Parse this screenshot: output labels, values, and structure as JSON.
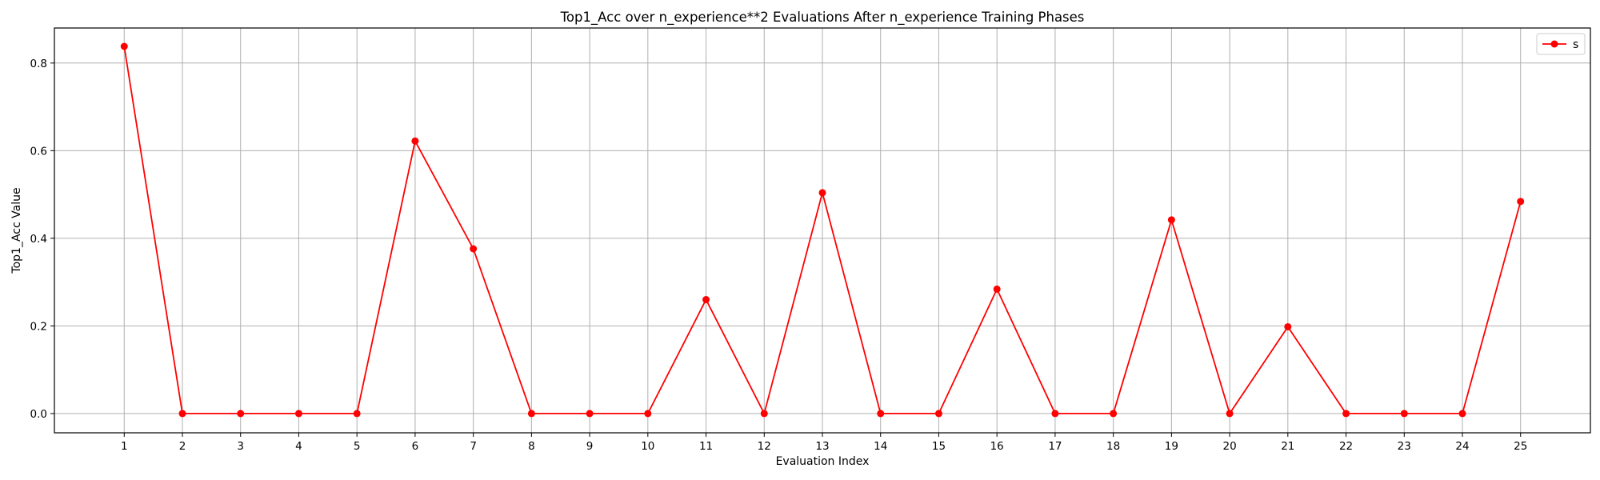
{
  "chart_data": {
    "type": "line",
    "title": "Top1_Acc over n_experience**2 Evaluations After n_experience Training Phases",
    "xlabel": "Evaluation Index",
    "ylabel": "Top1_Acc Value",
    "x": [
      1,
      2,
      3,
      4,
      5,
      6,
      7,
      8,
      9,
      10,
      11,
      12,
      13,
      14,
      15,
      16,
      17,
      18,
      19,
      20,
      21,
      22,
      23,
      24,
      25
    ],
    "xlim": [
      -0.2,
      26.2
    ],
    "ylim": [
      -0.044,
      0.88
    ],
    "xticks": [
      "1",
      "2",
      "3",
      "4",
      "5",
      "6",
      "7",
      "8",
      "9",
      "10",
      "11",
      "12",
      "13",
      "14",
      "15",
      "16",
      "17",
      "18",
      "19",
      "20",
      "21",
      "22",
      "23",
      "24",
      "25"
    ],
    "yticks": [
      "0.0",
      "0.2",
      "0.4",
      "0.6",
      "0.8"
    ],
    "ytick_values": [
      0.0,
      0.2,
      0.4,
      0.6,
      0.8
    ],
    "grid": true,
    "legend_position": "top-right",
    "series": [
      {
        "name": "s",
        "color": "#ff0000",
        "marker": "circle",
        "values": [
          0.838,
          0,
          0,
          0,
          0,
          0.622,
          0.376,
          0,
          0,
          0,
          0.26,
          0,
          0.504,
          0,
          0,
          0.284,
          0,
          0,
          0.442,
          0,
          0.198,
          0,
          0,
          0,
          0.484
        ]
      }
    ]
  }
}
